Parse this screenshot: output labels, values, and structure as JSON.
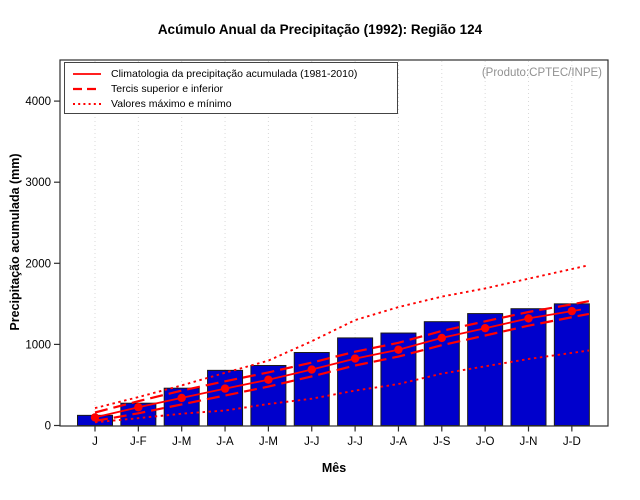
{
  "annotation": {
    "source": "(Produto:CPTEC/INPE)"
  },
  "legend": {
    "items": [
      {
        "label": "Climatologia da precipitação acumulada (1981-2010)",
        "style": "solid"
      },
      {
        "label": "Tercis superior e inferior",
        "style": "dashed"
      },
      {
        "label": "Valores máximo e mínimo",
        "style": "dotted"
      }
    ]
  },
  "colors": {
    "bar_fill": "#0000CC",
    "bar_border": "#1a1a1a",
    "line": "#FF0000",
    "grid": "#d9d9d9",
    "frame": "#2e2e2e",
    "tick_text": "#000000",
    "annotation_text": "#919191"
  },
  "chart_data": {
    "type": "bar",
    "title": "Acúmulo Anual da Precipitação (1992): Região 124",
    "xlabel": "Mês",
    "ylabel": "Precipitação acumulada (mm)",
    "ylim": [
      0,
      4500
    ],
    "y_ticks": [
      0,
      1000,
      2000,
      3000,
      4000
    ],
    "grid": "vertical-dotted",
    "legend_position": "top-left",
    "categories": [
      "J",
      "J-F",
      "J-M",
      "J-A",
      "J-M",
      "J-J",
      "J-J",
      "J-A",
      "J-S",
      "J-O",
      "J-N",
      "J-D"
    ],
    "bar_values": [
      125,
      275,
      460,
      680,
      740,
      900,
      1080,
      1140,
      1280,
      1380,
      1440,
      1500
    ],
    "series": [
      {
        "name": "Climatologia da precipitação acumulada (1981-2010)",
        "style": "solid",
        "marker": "circle",
        "values": [
          100,
          225,
          340,
          455,
          565,
          690,
          825,
          935,
          1080,
          1200,
          1320,
          1410
        ]
      },
      {
        "name": "Tercil superior",
        "style": "dashed",
        "marker": "none",
        "values": [
          160,
          300,
          430,
          545,
          655,
          775,
          910,
          1020,
          1165,
          1285,
          1400,
          1495
        ]
      },
      {
        "name": "Tercil inferior",
        "style": "dashed",
        "marker": "none",
        "values": [
          55,
          150,
          260,
          370,
          480,
          605,
          740,
          850,
          990,
          1110,
          1230,
          1335
        ]
      },
      {
        "name": "Valor máximo",
        "style": "dotted",
        "marker": "none",
        "values": [
          215,
          350,
          495,
          650,
          800,
          1040,
          1300,
          1460,
          1590,
          1690,
          1810,
          1930
        ]
      },
      {
        "name": "Valor mínimo",
        "style": "dotted",
        "marker": "none",
        "values": [
          40,
          90,
          145,
          185,
          265,
          330,
          430,
          510,
          640,
          730,
          820,
          895
        ]
      }
    ]
  }
}
